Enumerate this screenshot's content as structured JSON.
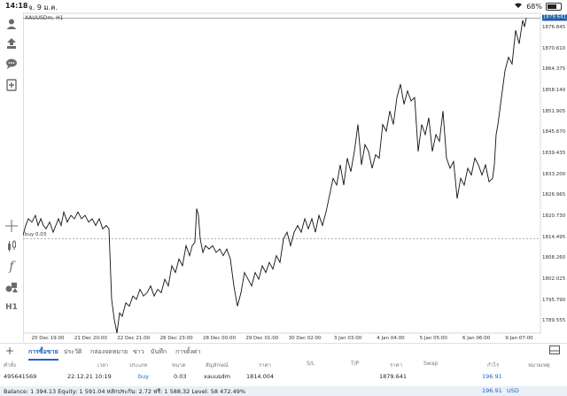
{
  "status_bar": {
    "time": "14:18",
    "date": "จ. 9 ม.ค.",
    "battery": "68%",
    "battery_level": 0.68
  },
  "chart": {
    "symbol": "XAUUSDm, H1",
    "current_price": "1879.641",
    "buy_label": "buy 0.03",
    "buy_level": 1814.004,
    "y_ticks": [
      "1876.845",
      "1870.610",
      "1864.375",
      "1858.140",
      "1851.905",
      "1845.670",
      "1839.435",
      "1833.200",
      "1826.965",
      "1820.730",
      "1814.495",
      "1808.260",
      "1802.025",
      "1795.790",
      "1789.555"
    ],
    "x_ticks": [
      "20 Dec 19:00",
      "21 Dec 20:00",
      "22 Dec 21:00",
      "26 Dec 23:00",
      "28 Dec 00:00",
      "29 Dec 01:00",
      "30 Dec 02:00",
      "3 Jan 03:00",
      "4 Jan 04:00",
      "5 Jan 05:00",
      "6 Jan 06:00",
      "9 Jan 07:00"
    ]
  },
  "chart_data": {
    "type": "line",
    "title": "XAUUSDm, H1",
    "ylim": [
      1786.0,
      1880.0
    ],
    "points": [
      [
        0,
        1815
      ],
      [
        3,
        1818
      ],
      [
        6,
        1820
      ],
      [
        10,
        1819
      ],
      [
        14,
        1821
      ],
      [
        17,
        1818
      ],
      [
        20,
        1820
      ],
      [
        23,
        1818
      ],
      [
        26,
        1817
      ],
      [
        30,
        1819
      ],
      [
        34,
        1816
      ],
      [
        37,
        1818
      ],
      [
        40,
        1820
      ],
      [
        43,
        1818
      ],
      [
        46,
        1822
      ],
      [
        50,
        1819
      ],
      [
        54,
        1821
      ],
      [
        58,
        1820
      ],
      [
        62,
        1822
      ],
      [
        66,
        1820
      ],
      [
        70,
        1821
      ],
      [
        74,
        1819
      ],
      [
        78,
        1820
      ],
      [
        82,
        1818
      ],
      [
        86,
        1820
      ],
      [
        90,
        1817
      ],
      [
        94,
        1818
      ],
      [
        97,
        1817
      ],
      [
        100,
        1796
      ],
      [
        103,
        1790
      ],
      [
        106,
        1786
      ],
      [
        109,
        1792
      ],
      [
        112,
        1791
      ],
      [
        116,
        1795
      ],
      [
        120,
        1794
      ],
      [
        124,
        1797
      ],
      [
        128,
        1796
      ],
      [
        132,
        1799
      ],
      [
        136,
        1797
      ],
      [
        140,
        1798
      ],
      [
        144,
        1800
      ],
      [
        148,
        1797
      ],
      [
        152,
        1799
      ],
      [
        156,
        1798
      ],
      [
        160,
        1802
      ],
      [
        164,
        1800
      ],
      [
        168,
        1806
      ],
      [
        172,
        1804
      ],
      [
        176,
        1808
      ],
      [
        180,
        1806
      ],
      [
        184,
        1812
      ],
      [
        188,
        1809
      ],
      [
        191,
        1812
      ],
      [
        194,
        1813
      ],
      [
        196,
        1823
      ],
      [
        198,
        1821
      ],
      [
        200,
        1814
      ],
      [
        203,
        1810
      ],
      [
        206,
        1812
      ],
      [
        210,
        1811
      ],
      [
        214,
        1812
      ],
      [
        218,
        1810
      ],
      [
        222,
        1811
      ],
      [
        226,
        1809
      ],
      [
        230,
        1811
      ],
      [
        234,
        1808
      ],
      [
        238,
        1800
      ],
      [
        242,
        1794
      ],
      [
        246,
        1798
      ],
      [
        250,
        1804
      ],
      [
        254,
        1802
      ],
      [
        258,
        1800
      ],
      [
        262,
        1804
      ],
      [
        266,
        1802
      ],
      [
        270,
        1806
      ],
      [
        274,
        1804
      ],
      [
        278,
        1807
      ],
      [
        282,
        1805
      ],
      [
        286,
        1809
      ],
      [
        290,
        1807
      ],
      [
        294,
        1814
      ],
      [
        298,
        1816
      ],
      [
        302,
        1812
      ],
      [
        306,
        1816
      ],
      [
        310,
        1818
      ],
      [
        314,
        1816
      ],
      [
        318,
        1820
      ],
      [
        322,
        1817
      ],
      [
        326,
        1820
      ],
      [
        330,
        1816
      ],
      [
        334,
        1821
      ],
      [
        338,
        1818
      ],
      [
        342,
        1822
      ],
      [
        346,
        1827
      ],
      [
        350,
        1832
      ],
      [
        354,
        1830
      ],
      [
        358,
        1836
      ],
      [
        362,
        1830
      ],
      [
        366,
        1838
      ],
      [
        370,
        1834
      ],
      [
        374,
        1840
      ],
      [
        378,
        1848
      ],
      [
        382,
        1836
      ],
      [
        386,
        1842
      ],
      [
        390,
        1840
      ],
      [
        394,
        1835
      ],
      [
        398,
        1839
      ],
      [
        402,
        1838
      ],
      [
        406,
        1848
      ],
      [
        410,
        1846
      ],
      [
        414,
        1852
      ],
      [
        418,
        1848
      ],
      [
        422,
        1856
      ],
      [
        426,
        1860
      ],
      [
        430,
        1854
      ],
      [
        434,
        1858
      ],
      [
        438,
        1855
      ],
      [
        442,
        1856
      ],
      [
        446,
        1840
      ],
      [
        450,
        1848
      ],
      [
        454,
        1845
      ],
      [
        458,
        1850
      ],
      [
        462,
        1840
      ],
      [
        466,
        1845
      ],
      [
        470,
        1843
      ],
      [
        474,
        1852
      ],
      [
        478,
        1838
      ],
      [
        482,
        1835
      ],
      [
        486,
        1837
      ],
      [
        490,
        1826
      ],
      [
        494,
        1832
      ],
      [
        498,
        1830
      ],
      [
        502,
        1835
      ],
      [
        506,
        1833
      ],
      [
        510,
        1838
      ],
      [
        514,
        1836
      ],
      [
        518,
        1833
      ],
      [
        522,
        1836
      ],
      [
        526,
        1831
      ],
      [
        530,
        1832
      ],
      [
        532,
        1836
      ],
      [
        534,
        1845
      ],
      [
        536,
        1848
      ],
      [
        538,
        1852
      ],
      [
        540,
        1856
      ],
      [
        544,
        1864
      ],
      [
        548,
        1868
      ],
      [
        552,
        1866
      ],
      [
        556,
        1876
      ],
      [
        560,
        1872
      ],
      [
        564,
        1879
      ],
      [
        566,
        1877
      ],
      [
        568,
        1879.641
      ]
    ],
    "x_domain": [
      0,
      572
    ]
  },
  "tabs": [
    "การซื้อขาย",
    "ประวัติ",
    "กล่องจดหมาย",
    "ข่าว",
    "บันทึก",
    "การตั้งค่า"
  ],
  "table": {
    "headers": [
      "คำสั่ง",
      "เวลา",
      "ประเภท",
      "ขนาด",
      "สัญลักษณ์",
      "ราคา",
      "S/L",
      "T/P",
      "ราคา",
      "Swap",
      "กำไร",
      "หมายเหตุ"
    ],
    "row": [
      "495641569",
      "22.12.21 10:19",
      "buy",
      "0.03",
      "xauusdm",
      "1814.004",
      "",
      "",
      "1879.641",
      "",
      "196.91",
      ""
    ]
  },
  "balance": {
    "text": "Balance: 1 394.13 Equity: 1 591.04 หลักประกัน: 2.72 ฟรี: 1 588.32 Level: 58 472.49%",
    "profit": "196.91",
    "currency": "USD"
  },
  "colors": {
    "accent": "#1e63c8",
    "price_tag": "#1f5ea8"
  }
}
